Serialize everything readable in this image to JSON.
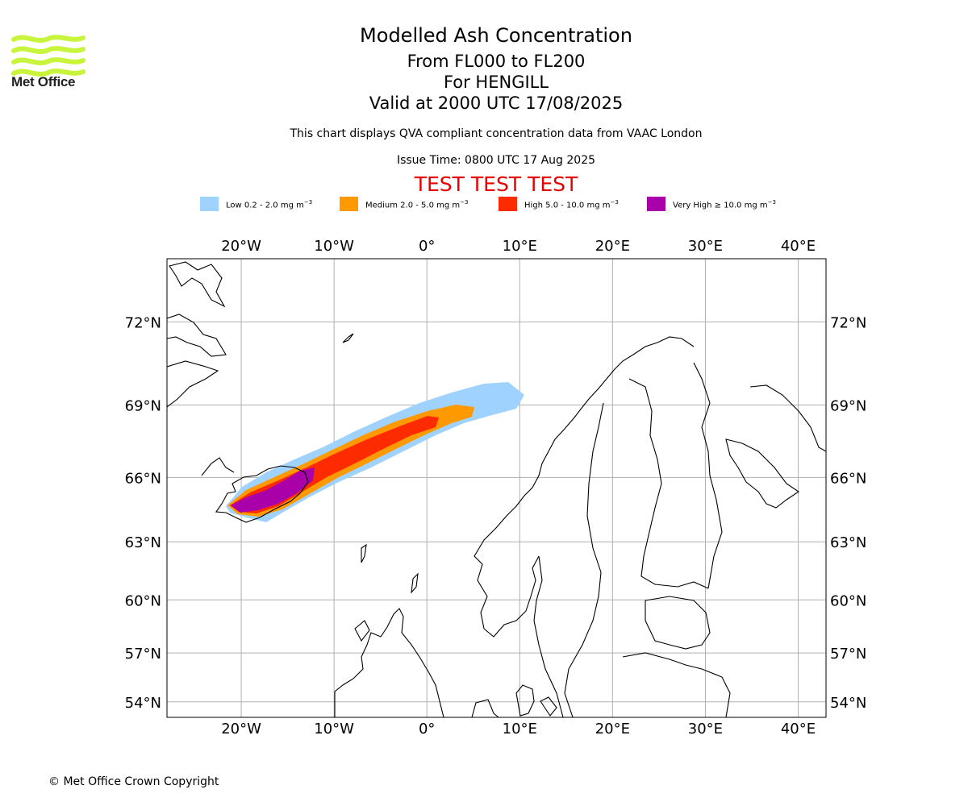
{
  "branding": {
    "name": "Met Office",
    "logo_color": "#c8f53c"
  },
  "header": {
    "title": "Modelled Ash Concentration",
    "levels": "From FL000 to FL200",
    "volcano": "For HENGILL",
    "valid": "Valid at 2000 UTC 17/08/2025",
    "description": "This chart displays QVA compliant concentration data from VAAC London",
    "issue_time": "Issue Time: 0800 UTC 17 Aug 2025",
    "test_banner": "TEST TEST TEST",
    "test_color": "#e60000"
  },
  "legend": [
    {
      "label": "Low 0.2 - 2.0 mg m",
      "exp": "−3",
      "color": "#a0d2ff"
    },
    {
      "label": "Medium 2.0 - 5.0 mg m",
      "exp": "−3",
      "color": "#ff9900"
    },
    {
      "label": "High 5.0 - 10.0 mg m",
      "exp": "−3",
      "color": "#ff2b00"
    },
    {
      "label": "Very High ≥ 10.0 mg m",
      "exp": "−3",
      "color": "#aa00aa"
    }
  ],
  "map": {
    "lon_range": [
      -28,
      43
    ],
    "lat_range": [
      53,
      74
    ],
    "lon_ticks": [
      {
        "value": -20,
        "label": "20°W"
      },
      {
        "value": -10,
        "label": "10°W"
      },
      {
        "value": 0,
        "label": "0°"
      },
      {
        "value": 10,
        "label": "10°E"
      },
      {
        "value": 20,
        "label": "20°E"
      },
      {
        "value": 30,
        "label": "30°E"
      },
      {
        "value": 40,
        "label": "40°E"
      }
    ],
    "lat_ticks": [
      {
        "value": 72,
        "label": "72°N"
      },
      {
        "value": 69,
        "label": "69°N"
      },
      {
        "value": 66,
        "label": "66°N"
      },
      {
        "value": 63,
        "label": "63°N"
      },
      {
        "value": 60,
        "label": "60°N"
      },
      {
        "value": 57,
        "label": "57°N"
      },
      {
        "value": 54,
        "label": "54°N"
      }
    ],
    "grid": true,
    "coastline_color": "#000000",
    "gridline_color": "#b0b0b0"
  },
  "footer": {
    "copyright": "© Met Office Crown Copyright"
  }
}
